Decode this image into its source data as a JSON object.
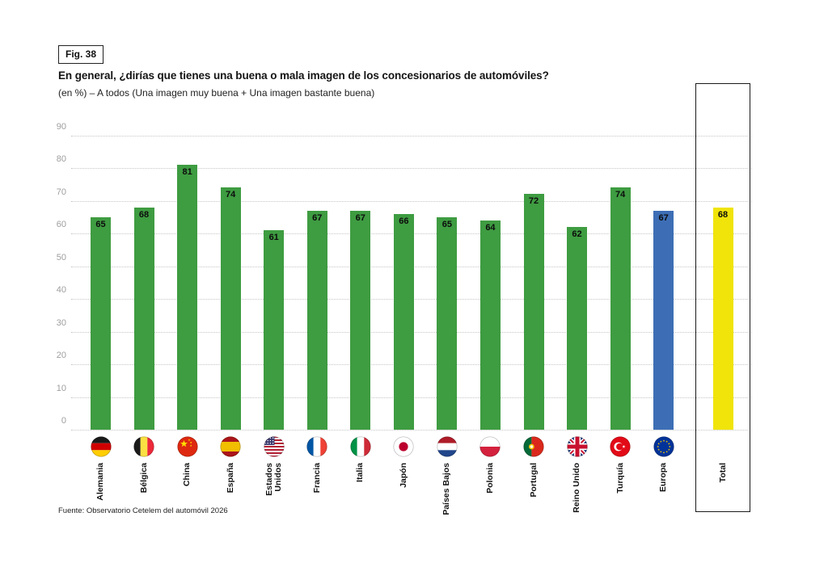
{
  "figure": {
    "fig_label": "Fig. 38",
    "title": "En general, ¿dirías que tienes una buena o mala imagen de los concesionarios de automóviles?",
    "subtitle": "(en %) – A todos (Una imagen muy buena + Una imagen bastante buena)",
    "source": "Fuente: Observatorio Cetelem del automóvil 2026"
  },
  "chart_data": {
    "type": "bar",
    "title": "En general, ¿dirías que tienes una buena o mala imagen de los concesionarios de automóviles?",
    "subtitle": "(en %) – A todos (Una imagen muy buena + Una imagen bastante buena)",
    "xlabel": "",
    "ylabel": "",
    "ylim": [
      0,
      90
    ],
    "yticks": [
      0,
      10,
      20,
      30,
      40,
      50,
      60,
      70,
      80,
      90
    ],
    "grid": "horizontal dotted",
    "legend": "none",
    "categories": [
      "Alemania",
      "Bélgica",
      "China",
      "España",
      "Estados Unidos",
      "Francia",
      "Italia",
      "Japón",
      "Países Bajos",
      "Polonia",
      "Portugal",
      "Reino Unido",
      "Turquía",
      "Europa",
      "Total"
    ],
    "values": [
      65,
      68,
      81,
      74,
      61,
      67,
      67,
      66,
      65,
      64,
      72,
      62,
      74,
      67,
      68
    ],
    "bars": [
      {
        "label": "Alemania",
        "display": "Alemania",
        "value": 65,
        "flag": "germany",
        "group": "country"
      },
      {
        "label": "Bélgica",
        "display": "Bélgica",
        "value": 68,
        "flag": "belgium",
        "group": "country"
      },
      {
        "label": "China",
        "display": "China",
        "value": 81,
        "flag": "china",
        "group": "country"
      },
      {
        "label": "España",
        "display": "España",
        "value": 74,
        "flag": "spain",
        "group": "country"
      },
      {
        "label": "Estados Unidos",
        "display": "Estados\nUnidos",
        "value": 61,
        "flag": "usa",
        "group": "country"
      },
      {
        "label": "Francia",
        "display": "Francia",
        "value": 67,
        "flag": "france",
        "group": "country"
      },
      {
        "label": "Italia",
        "display": "Italia",
        "value": 67,
        "flag": "italy",
        "group": "country"
      },
      {
        "label": "Japón",
        "display": "Japón",
        "value": 66,
        "flag": "japan",
        "group": "country"
      },
      {
        "label": "Países Bajos",
        "display": "Países Bajos",
        "value": 65,
        "flag": "netherlands",
        "group": "country"
      },
      {
        "label": "Polonia",
        "display": "Polonia",
        "value": 64,
        "flag": "poland",
        "group": "country"
      },
      {
        "label": "Portugal",
        "display": "Portugal",
        "value": 72,
        "flag": "portugal",
        "group": "country"
      },
      {
        "label": "Reino Unido",
        "display": "Reino Unido",
        "value": 62,
        "flag": "uk",
        "group": "country"
      },
      {
        "label": "Turquía",
        "display": "Turquía",
        "value": 74,
        "flag": "turkey",
        "group": "country"
      },
      {
        "label": "Europa",
        "display": "Europa",
        "value": 67,
        "flag": "europe",
        "group": "europe"
      },
      {
        "label": "Total",
        "display": "Total",
        "value": 68,
        "flag": null,
        "group": "total"
      }
    ],
    "colors": {
      "country_bar": "#3e9c41",
      "europe_bar": "#3d6eb5",
      "total_bar": "#f0e40a",
      "grid": "#c6c6c6",
      "tick_label": "#9e9e9e",
      "value_label": "#0c0c0c"
    }
  }
}
